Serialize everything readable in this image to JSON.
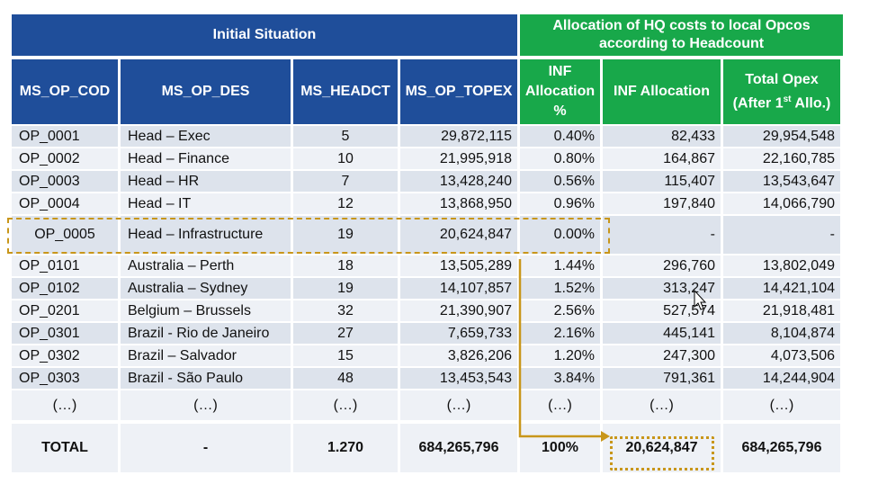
{
  "header": {
    "initial_situation": "Initial Situation",
    "allocation_title": "Allocation of HQ costs to local Opcos according to Headcount"
  },
  "columns": [
    "MS_OP_COD",
    "MS_OP_DES",
    "MS_HEADCT",
    "MS_OP_TOPEX",
    "INF Allocation %",
    "INF Allocation",
    "Total Opex (After 1st Allo.)"
  ],
  "col_f_label_line1": "Total Opex",
  "col_f_label_line2a": "(After 1",
  "col_f_label_sup": "st",
  "col_f_label_line2b": " Allo.)",
  "rows": [
    {
      "code": "OP_0001",
      "desc": "Head – Exec",
      "headct": "5",
      "topex": "29,872,115",
      "pct": "0.40%",
      "alloc": "82,433",
      "total": "29,954,548"
    },
    {
      "code": "OP_0002",
      "desc": "Head – Finance",
      "headct": "10",
      "topex": "21,995,918",
      "pct": "0.80%",
      "alloc": "164,867",
      "total": "22,160,785"
    },
    {
      "code": "OP_0003",
      "desc": "Head – HR",
      "headct": "7",
      "topex": "13,428,240",
      "pct": "0.56%",
      "alloc": "115,407",
      "total": "13,543,647"
    },
    {
      "code": "OP_0004",
      "desc": "Head – IT",
      "headct": "12",
      "topex": "13,868,950",
      "pct": "0.96%",
      "alloc": "197,840",
      "total": "14,066,790"
    },
    {
      "code": "OP_0005",
      "desc": "Head – Infrastructure",
      "headct": "19",
      "topex": "20,624,847",
      "pct": "0.00%",
      "alloc": "-",
      "total": "-"
    },
    {
      "code": "OP_0101",
      "desc": "Australia – Perth",
      "headct": "18",
      "topex": "13,505,289",
      "pct": "1.44%",
      "alloc": "296,760",
      "total": "13,802,049"
    },
    {
      "code": "OP_0102",
      "desc": "Australia – Sydney",
      "headct": "19",
      "topex": "14,107,857",
      "pct": "1.52%",
      "alloc": "313,247",
      "total": "14,421,104"
    },
    {
      "code": "OP_0201",
      "desc": "Belgium – Brussels",
      "headct": "32",
      "topex": "21,390,907",
      "pct": "2.56%",
      "alloc": "527,574",
      "total": "21,918,481"
    },
    {
      "code": "OP_0301",
      "desc": "Brazil - Rio de Janeiro",
      "headct": "27",
      "topex": "7,659,733",
      "pct": "2.16%",
      "alloc": "445,141",
      "total": "8,104,874"
    },
    {
      "code": "OP_0302",
      "desc": "Brazil – Salvador",
      "headct": "15",
      "topex": "3,826,206",
      "pct": "1.20%",
      "alloc": "247,300",
      "total": "4,073,506"
    },
    {
      "code": "OP_0303",
      "desc": "Brazil - São Paulo",
      "headct": "48",
      "topex": "13,453,543",
      "pct": "3.84%",
      "alloc": "791,361",
      "total": "14,244,904"
    },
    {
      "code": "(…)",
      "desc": "(…)",
      "headct": "(…)",
      "topex": "(…)",
      "pct": "(…)",
      "alloc": "(…)",
      "total": "(…)"
    }
  ],
  "total_row": {
    "code": "TOTAL",
    "desc": "-",
    "headct": "1.270",
    "topex": "684,265,796",
    "pct": "100%",
    "alloc": "20,624,847",
    "total": "684,265,796"
  },
  "highlight_color": "#c8961a"
}
